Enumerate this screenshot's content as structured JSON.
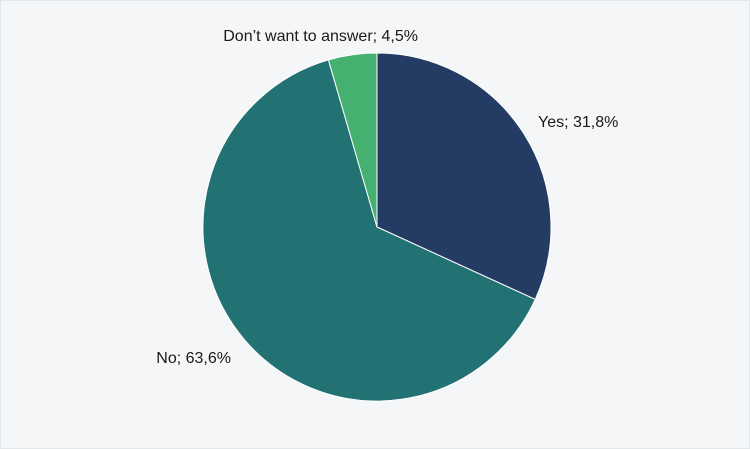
{
  "chart_data": {
    "type": "pie",
    "title": "",
    "slices": [
      {
        "label": "Yes",
        "value": 31.8,
        "display": "Yes; 31,8%",
        "color": "#243b63"
      },
      {
        "label": "No",
        "value": 63.6,
        "display": "No; 63,6%",
        "color": "#227274"
      },
      {
        "label": "Don’t want to answer",
        "value": 4.5,
        "display": "Don’t want to answer; 4,5%",
        "color": "#45b070"
      }
    ],
    "start": "top",
    "direction": "clockwise",
    "legend": "none"
  }
}
